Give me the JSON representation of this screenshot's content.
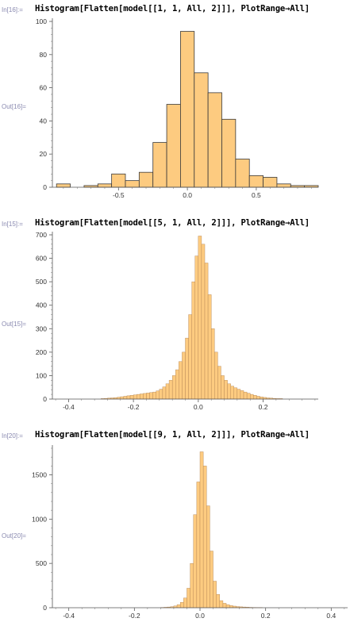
{
  "cells": [
    {
      "in_label": "In[16]:=",
      "code": "Histogram[Flatten[model[[1, 1, All, 2]]], PlotRange→All]",
      "out_label": "Out[16]=",
      "chart_data": {
        "type": "bar",
        "xlim": [
          -0.98,
          0.95
        ],
        "ylim": [
          0,
          100
        ],
        "xticks": [
          -0.5,
          0.0,
          0.5
        ],
        "xtick_labels": [
          "-0.5",
          "0.0",
          "0.5"
        ],
        "yticks": [
          0,
          20,
          40,
          60,
          80,
          100
        ],
        "ytick_labels": [
          "0",
          "20",
          "40",
          "60",
          "80",
          "100"
        ],
        "bin_width": 0.1,
        "bins": [
          {
            "x0": -0.95,
            "y": 2
          },
          {
            "x0": -0.85,
            "y": 0
          },
          {
            "x0": -0.75,
            "y": 1
          },
          {
            "x0": -0.65,
            "y": 2
          },
          {
            "x0": -0.55,
            "y": 8
          },
          {
            "x0": -0.45,
            "y": 4
          },
          {
            "x0": -0.35,
            "y": 9
          },
          {
            "x0": -0.25,
            "y": 27
          },
          {
            "x0": -0.15,
            "y": 50
          },
          {
            "x0": -0.05,
            "y": 94
          },
          {
            "x0": 0.05,
            "y": 69
          },
          {
            "x0": 0.15,
            "y": 57
          },
          {
            "x0": 0.25,
            "y": 41
          },
          {
            "x0": 0.35,
            "y": 17
          },
          {
            "x0": 0.45,
            "y": 7
          },
          {
            "x0": 0.55,
            "y": 6
          },
          {
            "x0": 0.65,
            "y": 2
          },
          {
            "x0": 0.75,
            "y": 1
          },
          {
            "x0": 0.85,
            "y": 1
          }
        ],
        "fill": "#FDCB80",
        "stroke": "#3a3a3a"
      }
    },
    {
      "in_label": "In[15]:=",
      "code": "Histogram[Flatten[model[[5, 1, All, 2]]], PlotRange→All]",
      "out_label": "Out[15]=",
      "chart_data": {
        "type": "bar",
        "xlim": [
          -0.45,
          0.37
        ],
        "ylim": [
          0,
          700
        ],
        "xticks": [
          -0.4,
          -0.2,
          0.0,
          0.2
        ],
        "xtick_labels": [
          "-0.4",
          "-0.2",
          "0.0",
          "0.2"
        ],
        "yticks": [
          0,
          100,
          200,
          300,
          400,
          500,
          600,
          700
        ],
        "ytick_labels": [
          "0",
          "100",
          "200",
          "300",
          "400",
          "500",
          "600",
          "700"
        ],
        "bin_width": 0.01,
        "bins": [
          {
            "x0": -0.3,
            "y": 2
          },
          {
            "x0": -0.29,
            "y": 3
          },
          {
            "x0": -0.28,
            "y": 4
          },
          {
            "x0": -0.27,
            "y": 5
          },
          {
            "x0": -0.26,
            "y": 6
          },
          {
            "x0": -0.25,
            "y": 8
          },
          {
            "x0": -0.24,
            "y": 10
          },
          {
            "x0": -0.23,
            "y": 12
          },
          {
            "x0": -0.22,
            "y": 14
          },
          {
            "x0": -0.21,
            "y": 16
          },
          {
            "x0": -0.2,
            "y": 18
          },
          {
            "x0": -0.19,
            "y": 20
          },
          {
            "x0": -0.18,
            "y": 22
          },
          {
            "x0": -0.17,
            "y": 24
          },
          {
            "x0": -0.16,
            "y": 26
          },
          {
            "x0": -0.15,
            "y": 28
          },
          {
            "x0": -0.14,
            "y": 30
          },
          {
            "x0": -0.13,
            "y": 35
          },
          {
            "x0": -0.12,
            "y": 42
          },
          {
            "x0": -0.11,
            "y": 52
          },
          {
            "x0": -0.1,
            "y": 65
          },
          {
            "x0": -0.09,
            "y": 80
          },
          {
            "x0": -0.08,
            "y": 100
          },
          {
            "x0": -0.07,
            "y": 125
          },
          {
            "x0": -0.06,
            "y": 160
          },
          {
            "x0": -0.05,
            "y": 200
          },
          {
            "x0": -0.04,
            "y": 260
          },
          {
            "x0": -0.03,
            "y": 360
          },
          {
            "x0": -0.02,
            "y": 500
          },
          {
            "x0": -0.01,
            "y": 610
          },
          {
            "x0": 0.0,
            "y": 695
          },
          {
            "x0": 0.01,
            "y": 660
          },
          {
            "x0": 0.02,
            "y": 580
          },
          {
            "x0": 0.03,
            "y": 445
          },
          {
            "x0": 0.04,
            "y": 300
          },
          {
            "x0": 0.05,
            "y": 200
          },
          {
            "x0": 0.06,
            "y": 140
          },
          {
            "x0": 0.07,
            "y": 100
          },
          {
            "x0": 0.08,
            "y": 80
          },
          {
            "x0": 0.09,
            "y": 65
          },
          {
            "x0": 0.1,
            "y": 55
          },
          {
            "x0": 0.11,
            "y": 48
          },
          {
            "x0": 0.12,
            "y": 42
          },
          {
            "x0": 0.13,
            "y": 36
          },
          {
            "x0": 0.14,
            "y": 30
          },
          {
            "x0": 0.15,
            "y": 25
          },
          {
            "x0": 0.16,
            "y": 20
          },
          {
            "x0": 0.17,
            "y": 16
          },
          {
            "x0": 0.18,
            "y": 12
          },
          {
            "x0": 0.19,
            "y": 9
          },
          {
            "x0": 0.2,
            "y": 7
          },
          {
            "x0": 0.21,
            "y": 5
          },
          {
            "x0": 0.22,
            "y": 4
          },
          {
            "x0": 0.23,
            "y": 3
          },
          {
            "x0": 0.24,
            "y": 2
          },
          {
            "x0": 0.25,
            "y": 2
          }
        ],
        "fill": "#FDCB80",
        "stroke": "#b08050"
      }
    },
    {
      "in_label": "In[20]:=",
      "code": "Histogram[Flatten[model[[9, 1, All, 2]]], PlotRange→All]",
      "out_label": "Out[20]=",
      "chart_data": {
        "type": "bar",
        "xlim": [
          -0.45,
          0.45
        ],
        "ylim": [
          0,
          1800
        ],
        "xticks": [
          -0.4,
          -0.2,
          0.0,
          0.2,
          0.4
        ],
        "xtick_labels": [
          "-0.4",
          "-0.2",
          "0.0",
          "0.2",
          "0.4"
        ],
        "yticks": [
          0,
          500,
          1000,
          1500
        ],
        "ytick_labels": [
          "0",
          "500",
          "1000",
          "1500"
        ],
        "bin_width": 0.01,
        "bins": [
          {
            "x0": -0.12,
            "y": 3
          },
          {
            "x0": -0.11,
            "y": 5
          },
          {
            "x0": -0.1,
            "y": 8
          },
          {
            "x0": -0.09,
            "y": 12
          },
          {
            "x0": -0.08,
            "y": 20
          },
          {
            "x0": -0.07,
            "y": 35
          },
          {
            "x0": -0.06,
            "y": 60
          },
          {
            "x0": -0.05,
            "y": 110
          },
          {
            "x0": -0.04,
            "y": 220
          },
          {
            "x0": -0.03,
            "y": 500
          },
          {
            "x0": -0.02,
            "y": 1050
          },
          {
            "x0": -0.01,
            "y": 1420
          },
          {
            "x0": 0.0,
            "y": 1760
          },
          {
            "x0": 0.01,
            "y": 1600
          },
          {
            "x0": 0.02,
            "y": 1150
          },
          {
            "x0": 0.03,
            "y": 640
          },
          {
            "x0": 0.04,
            "y": 300
          },
          {
            "x0": 0.05,
            "y": 150
          },
          {
            "x0": 0.06,
            "y": 80
          },
          {
            "x0": 0.07,
            "y": 50
          },
          {
            "x0": 0.08,
            "y": 35
          },
          {
            "x0": 0.09,
            "y": 25
          },
          {
            "x0": 0.1,
            "y": 18
          },
          {
            "x0": 0.11,
            "y": 13
          },
          {
            "x0": 0.12,
            "y": 10
          },
          {
            "x0": 0.13,
            "y": 8
          },
          {
            "x0": 0.14,
            "y": 6
          },
          {
            "x0": 0.15,
            "y": 4
          },
          {
            "x0": 0.16,
            "y": 3
          },
          {
            "x0": 0.17,
            "y": 2
          },
          {
            "x0": 0.18,
            "y": 2
          }
        ],
        "fill": "#FDCB80",
        "stroke": "#b08050"
      }
    }
  ]
}
